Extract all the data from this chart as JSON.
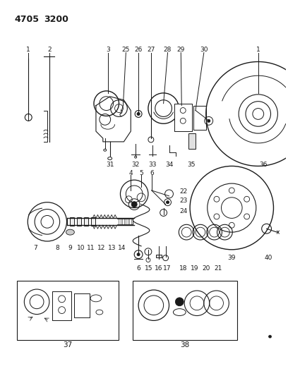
{
  "background_color": "#ffffff",
  "figsize": [
    4.08,
    5.33
  ],
  "dpi": 100,
  "header_text1": "4705",
  "header_text2": "3200",
  "line_color": "#1a1a1a",
  "text_color": "#1a1a1a",
  "label_fontsize": 6.5,
  "header_fontsize": 9
}
